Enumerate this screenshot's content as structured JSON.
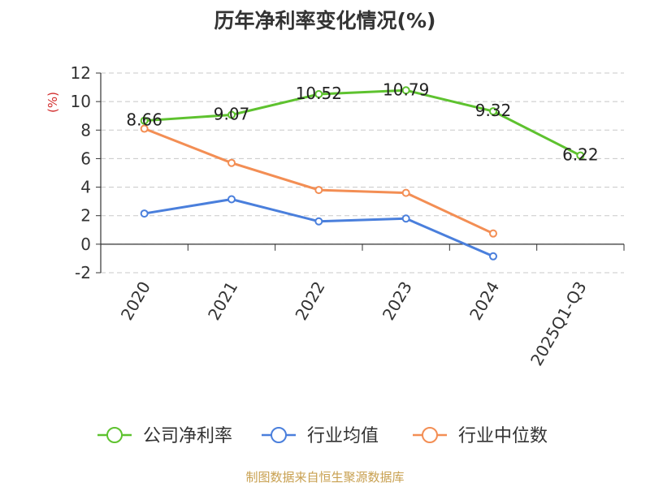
{
  "chart_data": {
    "type": "line",
    "title": "历年净利率变化情况(%)",
    "ylabel": "(%)",
    "categories": [
      "2020",
      "2021",
      "2022",
      "2023",
      "2024",
      "2025Q1-Q3"
    ],
    "ylim": [
      -2,
      12
    ],
    "yticks": [
      -2,
      0,
      2,
      4,
      6,
      8,
      10,
      12
    ],
    "ytick_labels": [
      "-2",
      "0",
      "2",
      "4",
      "6",
      "8",
      "10",
      "12"
    ],
    "grid": "horizontal dashed",
    "legend_position": "bottom",
    "series": [
      {
        "name": "公司净利率",
        "color": "#5ec22f",
        "values": [
          8.66,
          9.07,
          10.52,
          10.79,
          9.32,
          6.22
        ],
        "labels": [
          "8.66",
          "9.07",
          "10.52",
          "10.79",
          "9.32",
          "6.22"
        ]
      },
      {
        "name": "行业均值",
        "color": "#4a7fdc",
        "values": [
          2.15,
          3.15,
          1.6,
          1.8,
          -0.85,
          null
        ]
      },
      {
        "name": "行业中位数",
        "color": "#f38e54",
        "values": [
          8.1,
          5.7,
          3.8,
          3.6,
          0.75,
          null
        ]
      }
    ]
  },
  "footer": "制图数据来自恒生聚源数据库"
}
